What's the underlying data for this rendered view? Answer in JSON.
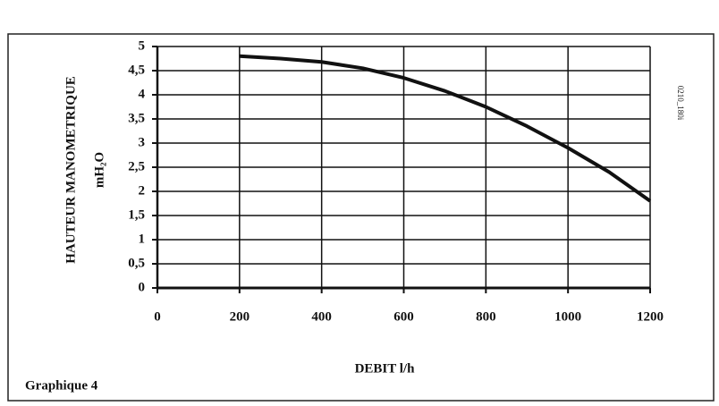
{
  "chart_data": {
    "type": "line",
    "x_label": "DEBIT l/h",
    "y_label": "HAUTEUR MANOMETRIQUE",
    "y_unit": "mH₂O",
    "caption": "Graphique 4",
    "code": "0210_180i",
    "x": [
      200,
      300,
      400,
      500,
      600,
      700,
      800,
      900,
      1000,
      1100,
      1200
    ],
    "series": [
      {
        "color": "#111111",
        "values": [
          4.8,
          4.75,
          4.68,
          4.55,
          4.35,
          4.08,
          3.75,
          3.35,
          2.9,
          2.4,
          1.8
        ]
      }
    ],
    "xlim": [
      0,
      1200
    ],
    "xticks": [
      0,
      200,
      400,
      600,
      800,
      1000,
      1200
    ],
    "ylim": [
      0,
      5
    ],
    "yticks": [
      0,
      {
        "value": 0.5,
        "label": "0,5"
      },
      1,
      {
        "value": 1.5,
        "label": "1,5"
      },
      2,
      {
        "value": 2.5,
        "label": "2,5"
      },
      3,
      {
        "value": 3.5,
        "label": "3,5"
      },
      4,
      {
        "value": 4.5,
        "label": "4,5"
      },
      5
    ],
    "grid": true
  }
}
